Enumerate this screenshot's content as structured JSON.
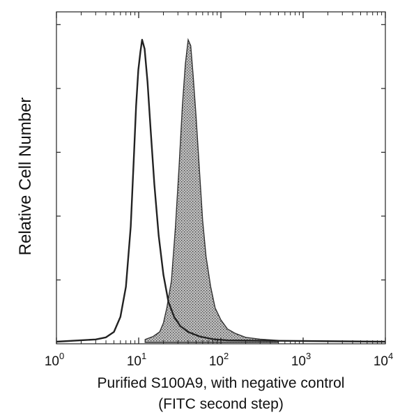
{
  "chart_data": {
    "type": "area",
    "xscale": "log",
    "xlim": [
      1,
      10000
    ],
    "x_tick_values": [
      1,
      10,
      100,
      1000,
      10000
    ],
    "x_tick_labels": [
      {
        "base": "10",
        "exp": "0"
      },
      {
        "base": "10",
        "exp": "1"
      },
      {
        "base": "10",
        "exp": "2"
      },
      {
        "base": "10",
        "exp": "3"
      },
      {
        "base": "10",
        "exp": "4"
      }
    ],
    "ylim": [
      0,
      100
    ],
    "y_tick_labels_shown": false,
    "grid": false,
    "xlabel_line1": "Purified S100A9, with negative control",
    "xlabel_line2": "(FITC second step)",
    "ylabel": "Relative Cell Number",
    "series": [
      {
        "style": "open-outline",
        "color": "#222222",
        "points": [
          [
            3.0,
            0.5
          ],
          [
            4.0,
            1.2
          ],
          [
            5.0,
            3
          ],
          [
            6.0,
            8
          ],
          [
            7.0,
            18
          ],
          [
            8.0,
            38
          ],
          [
            8.7,
            60
          ],
          [
            9.3,
            78
          ],
          [
            9.9,
            90
          ],
          [
            10.5,
            96
          ],
          [
            11.0,
            100
          ],
          [
            11.8,
            97
          ],
          [
            12.8,
            86
          ],
          [
            14.0,
            70
          ],
          [
            15.5,
            52
          ],
          [
            17.5,
            35
          ],
          [
            20.0,
            22
          ],
          [
            23.0,
            13
          ],
          [
            27.0,
            8
          ],
          [
            32.0,
            5
          ],
          [
            40.0,
            3
          ],
          [
            55.0,
            1.5
          ],
          [
            80.0,
            0.6
          ],
          [
            120.0,
            0.2
          ]
        ]
      },
      {
        "style": "filled-stipple",
        "color": "#333333",
        "points": [
          [
            12.0,
            0.5
          ],
          [
            15.0,
            1.5
          ],
          [
            18.0,
            3
          ],
          [
            20.0,
            6
          ],
          [
            22.0,
            11
          ],
          [
            25.0,
            20
          ],
          [
            28.0,
            38
          ],
          [
            31.0,
            58
          ],
          [
            34.0,
            78
          ],
          [
            37.0,
            92
          ],
          [
            40.0,
            100
          ],
          [
            43.0,
            98
          ],
          [
            46.0,
            88
          ],
          [
            50.0,
            74
          ],
          [
            55.0,
            56
          ],
          [
            60.0,
            40
          ],
          [
            66.0,
            28
          ],
          [
            75.0,
            18
          ],
          [
            85.0,
            11
          ],
          [
            100.0,
            7
          ],
          [
            120.0,
            4
          ],
          [
            150.0,
            2.5
          ],
          [
            200.0,
            1.2
          ],
          [
            300.0,
            0.6
          ],
          [
            500.0,
            0.2
          ]
        ]
      }
    ]
  }
}
